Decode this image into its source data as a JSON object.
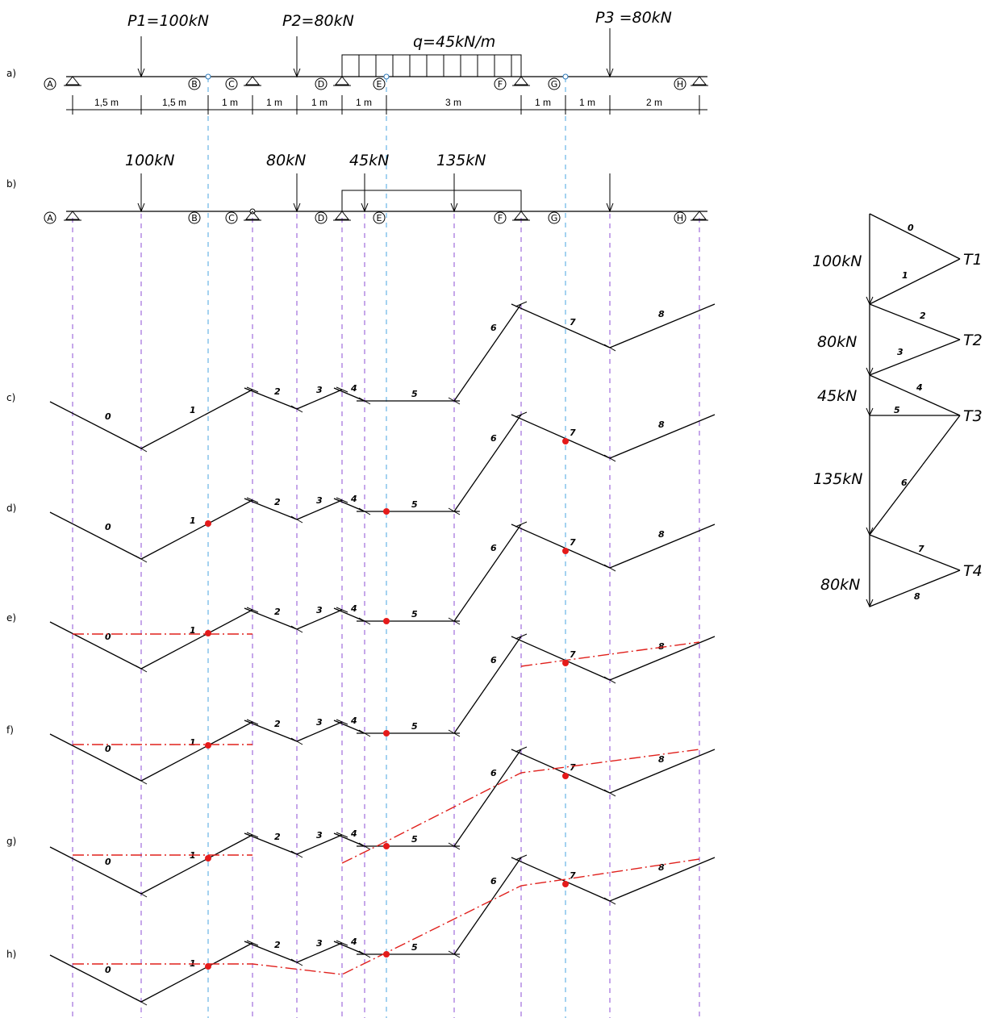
{
  "loads": {
    "p1": "P1=100kN",
    "p2": "P2=80kN",
    "p3": "P3 =80kN",
    "q": "q=45kN/m"
  },
  "row_labels": [
    "a)",
    "b)",
    "c)",
    "d)",
    "e)",
    "f)",
    "g)",
    "h)"
  ],
  "nodes": [
    "A",
    "B",
    "C",
    "D",
    "E",
    "F",
    "G",
    "H"
  ],
  "dimensions": [
    "1,5 m",
    "1,5 m",
    "1 m",
    "1 m",
    "1 m",
    "1 m",
    "3 m",
    "1 m",
    "1 m",
    "2 m"
  ],
  "equivalent_loads": [
    "100kN",
    "80kN",
    "45kN",
    "135kN"
  ],
  "segment_labels": [
    "0",
    "1",
    "2",
    "3",
    "4",
    "5",
    "6",
    "7",
    "8"
  ],
  "force_polygon": {
    "loads": [
      "100kN",
      "80kN",
      "45kN",
      "135kN",
      "80kN"
    ],
    "poles": [
      "T1",
      "T2",
      "T3",
      "T4"
    ],
    "rays": [
      "0",
      "1",
      "2",
      "3",
      "4",
      "5",
      "6",
      "7",
      "8"
    ]
  },
  "colors": {
    "line": "#000000",
    "support_projection": "#8c4fd6",
    "hinge_projection": "#4aa6e0",
    "closing_line": "#e0201c",
    "hinge_point": "#e51a1a"
  }
}
